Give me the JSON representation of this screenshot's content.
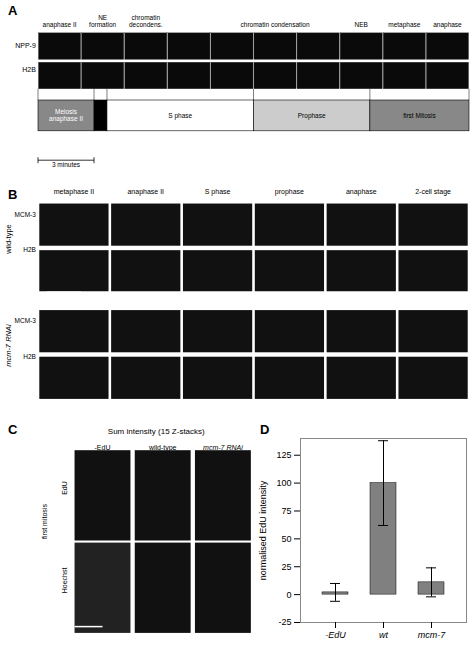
{
  "chart_data": {
    "type": "bar",
    "categories": [
      "-EdU",
      "wt",
      "mcm-7"
    ],
    "values": [
      2,
      100,
      11
    ],
    "errors": [
      8,
      38,
      13
    ],
    "color": "#808080",
    "ylabel": "normalised EdU intensity",
    "ylim": [
      -25,
      140
    ],
    "yticks": [
      -25,
      0,
      25,
      50,
      75,
      100,
      125
    ],
    "annotations": [
      "A",
      "anaphase II",
      "NE\nformation",
      "chromatin\ndecondens.",
      "chromatin condensation",
      "NEB",
      "metaphase",
      "anaphase",
      "NPP-9",
      "H2B",
      "Meiosis\nanaphase II",
      "S phase",
      "Prophase",
      "first Mitosis",
      "3 minutes",
      "B",
      "metaphase II",
      "anaphase II",
      "S phase",
      "prophase",
      "anaphase",
      "2-cell stage",
      "wild-type",
      "mcm-7 RNAi",
      "MCM-3",
      "H2B",
      "MCM-3",
      "H2B",
      "C",
      "Sum intensity (15 Z-stacks)",
      "-EdU",
      "wild-type",
      "mcm-7 RNAi",
      "first mitosis",
      "EdU",
      "Hoechst",
      "D"
    ]
  }
}
